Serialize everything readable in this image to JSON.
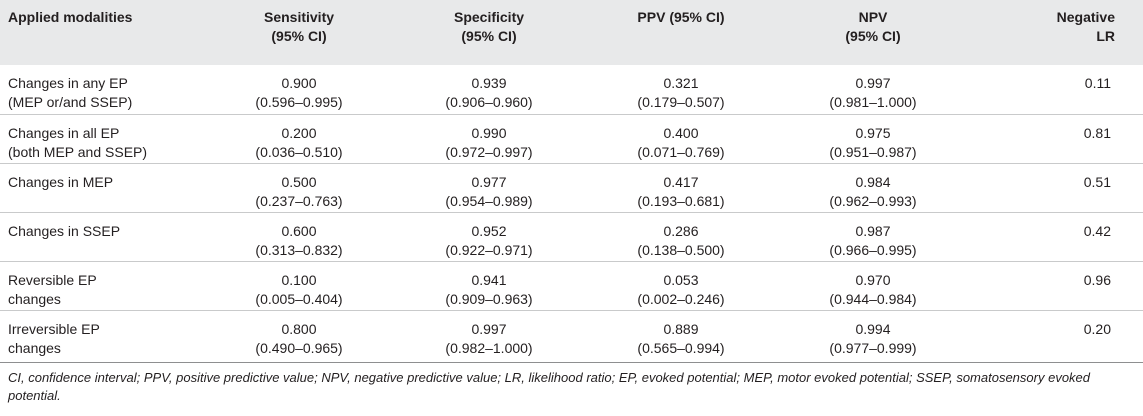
{
  "table": {
    "headers": [
      {
        "l1": "Applied modalities",
        "l2": ""
      },
      {
        "l1": "Sensitivity",
        "l2": "(95% CI)"
      },
      {
        "l1": "Specificity",
        "l2": "(95% CI)"
      },
      {
        "l1": "PPV (95% CI)",
        "l2": ""
      },
      {
        "l1": "NPV",
        "l2": "(95% CI)"
      },
      {
        "l1": "Negative",
        "l2": "LR"
      }
    ],
    "rows": [
      {
        "modality": {
          "l1": "Changes in any EP",
          "l2": "(MEP or/and SSEP)"
        },
        "sensitivity": {
          "v": "0.900",
          "ci": "(0.596–0.995)"
        },
        "specificity": {
          "v": "0.939",
          "ci": "(0.906–0.960)"
        },
        "ppv": {
          "v": "0.321",
          "ci": "(0.179–0.507)"
        },
        "npv": {
          "v": "0.997",
          "ci": "(0.981–1.000)"
        },
        "nlr": "0.11"
      },
      {
        "modality": {
          "l1": "Changes in all EP",
          "l2": "(both MEP and SSEP)"
        },
        "sensitivity": {
          "v": "0.200",
          "ci": "(0.036–0.510)"
        },
        "specificity": {
          "v": "0.990",
          "ci": "(0.972–0.997)"
        },
        "ppv": {
          "v": "0.400",
          "ci": "(0.071–0.769)"
        },
        "npv": {
          "v": "0.975",
          "ci": "(0.951–0.987)"
        },
        "nlr": "0.81"
      },
      {
        "modality": {
          "l1": "Changes in MEP",
          "l2": ""
        },
        "sensitivity": {
          "v": "0.500",
          "ci": "(0.237–0.763)"
        },
        "specificity": {
          "v": "0.977",
          "ci": "(0.954–0.989)"
        },
        "ppv": {
          "v": "0.417",
          "ci": "(0.193–0.681)"
        },
        "npv": {
          "v": "0.984",
          "ci": "(0.962–0.993)"
        },
        "nlr": "0.51"
      },
      {
        "modality": {
          "l1": "Changes in SSEP",
          "l2": ""
        },
        "sensitivity": {
          "v": "0.600",
          "ci": "(0.313–0.832)"
        },
        "specificity": {
          "v": "0.952",
          "ci": "(0.922–0.971)"
        },
        "ppv": {
          "v": "0.286",
          "ci": "(0.138–0.500)"
        },
        "npv": {
          "v": "0.987",
          "ci": "(0.966–0.995)"
        },
        "nlr": "0.42"
      },
      {
        "modality": {
          "l1": "Reversible EP",
          "l2": "changes"
        },
        "sensitivity": {
          "v": "0.100",
          "ci": "(0.005–0.404)"
        },
        "specificity": {
          "v": "0.941",
          "ci": "(0.909–0.963)"
        },
        "ppv": {
          "v": "0.053",
          "ci": "(0.002–0.246)"
        },
        "npv": {
          "v": "0.970",
          "ci": "(0.944–0.984)"
        },
        "nlr": "0.96"
      },
      {
        "modality": {
          "l1": "Irreversible EP",
          "l2": "changes"
        },
        "sensitivity": {
          "v": "0.800",
          "ci": "(0.490–0.965)"
        },
        "specificity": {
          "v": "0.997",
          "ci": "(0.982–1.000)"
        },
        "ppv": {
          "v": "0.889",
          "ci": "(0.565–0.994)"
        },
        "npv": {
          "v": "0.994",
          "ci": "(0.977–0.999)"
        },
        "nlr": "0.20"
      }
    ]
  },
  "footnote": "CI, confidence interval; PPV, positive predictive value; NPV, negative predictive value; LR, likelihood ratio; EP, evoked potential; MEP, motor evoked potential; SSEP, somatosensory evoked potential."
}
